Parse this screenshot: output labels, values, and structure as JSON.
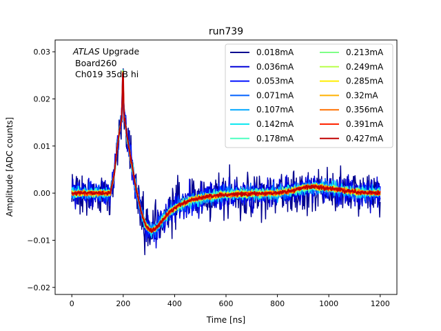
{
  "chart_data": {
    "type": "line",
    "title": "run739",
    "xlabel": "Time [ns]",
    "ylabel": "Amplitude [ADC counts]",
    "xlim": [
      -65,
      1265
    ],
    "ylim": [
      -0.0215,
      0.0325
    ],
    "xticks": [
      0,
      200,
      400,
      600,
      800,
      1000,
      1200
    ],
    "xtick_labels": [
      "0",
      "200",
      "400",
      "600",
      "800",
      "1000",
      "1200"
    ],
    "yticks": [
      -0.02,
      -0.01,
      0.0,
      0.01,
      0.02,
      0.03
    ],
    "ytick_labels": [
      "−0.02",
      "−0.01",
      "0.00",
      "0.01",
      "0.02",
      "0.03"
    ],
    "annotation": {
      "line1_italic": "ATLAS",
      "line1_rest": " Upgrade",
      "line2": "Board260",
      "line3": "Ch019 35dB hi"
    },
    "legend_position": "top-right",
    "legend_columns": 2,
    "baseline_waveform": {
      "t": [
        0,
        150,
        165,
        175,
        185,
        195,
        205,
        215,
        230,
        250,
        270,
        290,
        310,
        330,
        350,
        380,
        420,
        470,
        520,
        580,
        650,
        720,
        800,
        850,
        880,
        910,
        950,
        1000,
        1050,
        1100,
        1150,
        1200
      ],
      "y": [
        0.0,
        0.0,
        0.004,
        0.009,
        0.013,
        0.0165,
        0.0158,
        0.012,
        0.007,
        0.001,
        -0.004,
        -0.0072,
        -0.008,
        -0.0073,
        -0.006,
        -0.004,
        -0.0025,
        -0.0014,
        -0.0008,
        -0.0004,
        -0.0002,
        -0.0001,
        0.0,
        0.0004,
        0.0009,
        0.0013,
        0.0014,
        0.001,
        0.0006,
        0.0003,
        0.0001,
        0.0
      ]
    },
    "series": [
      {
        "name": "0.018mA",
        "color": "#00008f",
        "noise": 0.0024
      },
      {
        "name": "0.036mA",
        "color": "#0000d8",
        "noise": 0.0016
      },
      {
        "name": "0.053mA",
        "color": "#0010ff",
        "noise": 0.0012
      },
      {
        "name": "0.071mA",
        "color": "#0060ff",
        "noise": 0.0009
      },
      {
        "name": "0.107mA",
        "color": "#00a8ff",
        "noise": 0.0007
      },
      {
        "name": "0.142mA",
        "color": "#10e8f0",
        "noise": 0.0006
      },
      {
        "name": "0.178mA",
        "color": "#4cffc0",
        "noise": 0.0005
      },
      {
        "name": "0.213mA",
        "color": "#7dff86",
        "noise": 0.0004
      },
      {
        "name": "0.249mA",
        "color": "#b8ff4a",
        "noise": 0.00035
      },
      {
        "name": "0.285mA",
        "color": "#ffee00",
        "noise": 0.0003
      },
      {
        "name": "0.32mA",
        "color": "#ffb000",
        "noise": 0.00028
      },
      {
        "name": "0.356mA",
        "color": "#ff7000",
        "noise": 0.00026
      },
      {
        "name": "0.391mA",
        "color": "#ff2400",
        "noise": 0.00024
      },
      {
        "name": "0.427mA",
        "color": "#c00000",
        "noise": 0.00022
      }
    ]
  }
}
